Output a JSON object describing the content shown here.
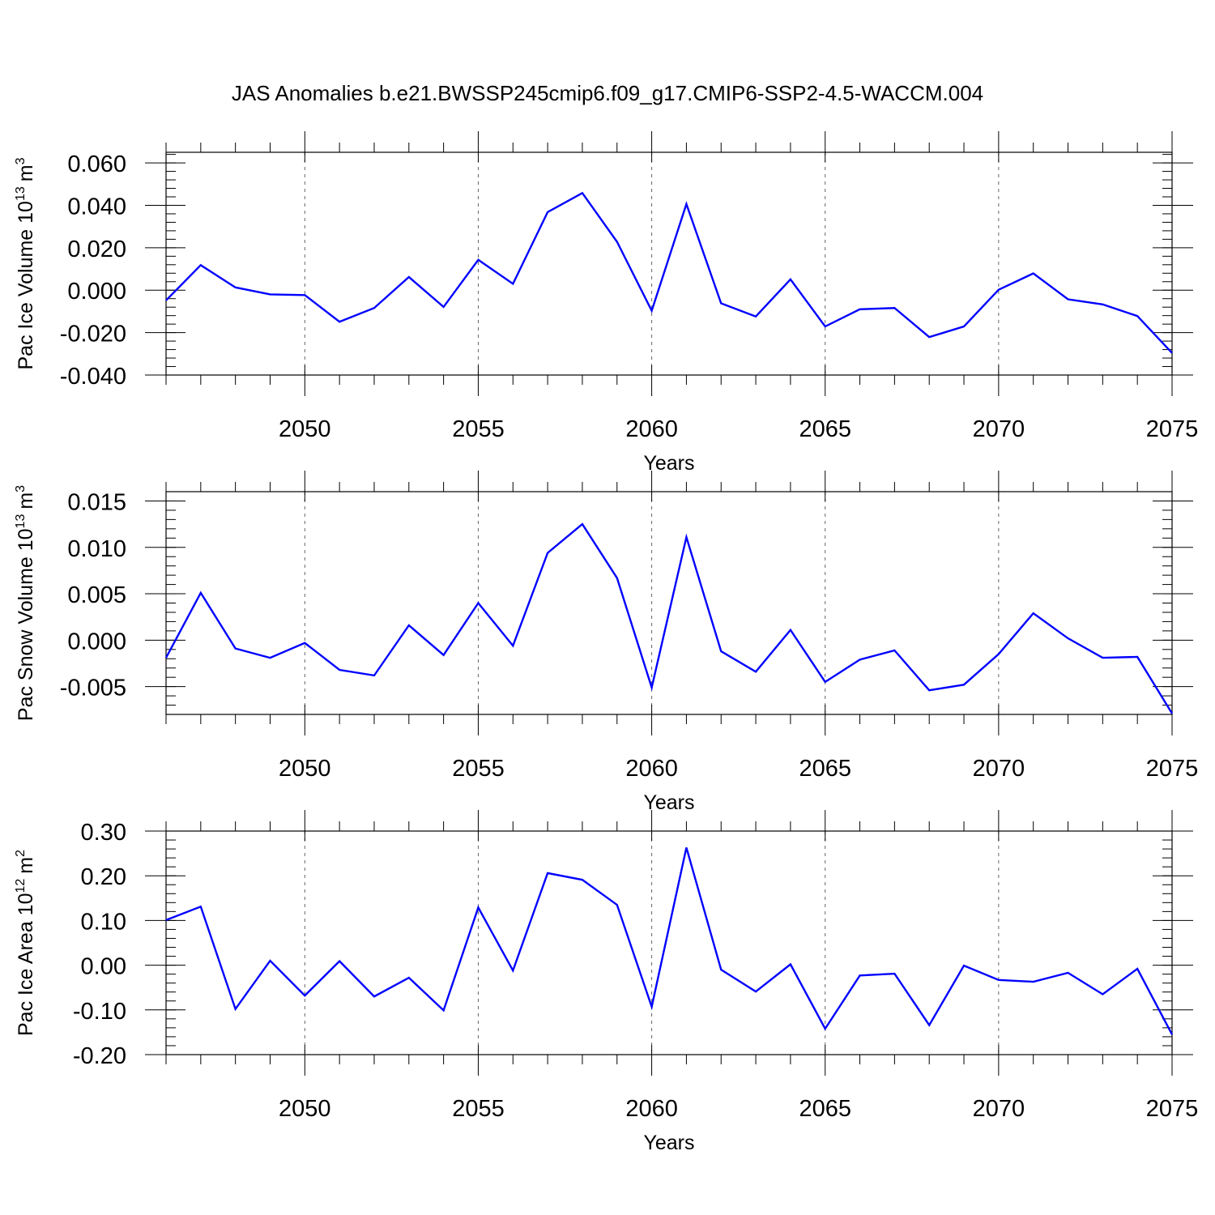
{
  "title": "JAS Anomalies b.e21.BWSSP245cmip6.f09_g17.CMIP6-SSP2-4.5-WACCM.004",
  "chart_data": [
    {
      "type": "line",
      "ylabel_main": "Pac Ice Volume 10",
      "ylabel_exp": "13",
      "ylabel_unit": "m",
      "ylabel_unit_exp": "3",
      "xlabel": "Years",
      "xlim": [
        2046,
        2075
      ],
      "ylim": [
        -0.04,
        0.065
      ],
      "yticks": [
        {
          "value": 0.06,
          "label": "0.060"
        },
        {
          "value": 0.04,
          "label": "0.040"
        },
        {
          "value": 0.02,
          "label": "0.020"
        },
        {
          "value": 0.0,
          "label": "0.000"
        },
        {
          "value": -0.02,
          "label": "-0.020"
        },
        {
          "value": -0.04,
          "label": "-0.040"
        }
      ],
      "yminor_step": 0.004,
      "xticks": [
        "2050",
        "2055",
        "2060",
        "2065",
        "2070",
        "2075"
      ],
      "x": [
        2046,
        2047,
        2048,
        2049,
        2050,
        2051,
        2052,
        2053,
        2054,
        2055,
        2056,
        2057,
        2058,
        2059,
        2060,
        2061,
        2062,
        2063,
        2064,
        2065,
        2066,
        2067,
        2068,
        2069,
        2070,
        2071,
        2072,
        2073,
        2074,
        2075
      ],
      "series": [
        {
          "values": [
            -0.0048,
            0.0118,
            0.0013,
            -0.002,
            -0.0023,
            -0.0149,
            -0.0084,
            0.0062,
            -0.0079,
            0.0143,
            0.003,
            0.0368,
            0.0458,
            0.0228,
            -0.0097,
            0.0406,
            -0.0062,
            -0.0124,
            0.0051,
            -0.0171,
            -0.009,
            -0.0084,
            -0.0221,
            -0.0171,
            0.0002,
            0.0079,
            -0.0043,
            -0.0067,
            -0.0122,
            -0.0296
          ]
        }
      ],
      "color": "#0000ff"
    },
    {
      "type": "line",
      "ylabel_main": "Pac Snow Volume 10",
      "ylabel_exp": "13",
      "ylabel_unit": "m",
      "ylabel_unit_exp": "3",
      "xlabel": "Years",
      "xlim": [
        2046,
        2075
      ],
      "ylim": [
        -0.008,
        0.016
      ],
      "yticks": [
        {
          "value": 0.015,
          "label": "0.015"
        },
        {
          "value": 0.01,
          "label": "0.010"
        },
        {
          "value": 0.005,
          "label": "0.005"
        },
        {
          "value": 0.0,
          "label": "0.000"
        },
        {
          "value": -0.005,
          "label": "-0.005"
        }
      ],
      "yminor_step": 0.001,
      "xticks": [
        "2050",
        "2055",
        "2060",
        "2065",
        "2070",
        "2075"
      ],
      "x": [
        2046,
        2047,
        2048,
        2049,
        2050,
        2051,
        2052,
        2053,
        2054,
        2055,
        2056,
        2057,
        2058,
        2059,
        2060,
        2061,
        2062,
        2063,
        2064,
        2065,
        2066,
        2067,
        2068,
        2069,
        2070,
        2071,
        2072,
        2073,
        2074,
        2075
      ],
      "series": [
        {
          "values": [
            -0.0019,
            0.0051,
            -0.0009,
            -0.0019,
            -0.0003,
            -0.0032,
            -0.0038,
            0.0016,
            -0.0016,
            0.004,
            -0.0006,
            0.0094,
            0.0125,
            0.0067,
            -0.0051,
            0.0111,
            -0.0012,
            -0.0034,
            0.0011,
            -0.0045,
            -0.0021,
            -0.0011,
            -0.0054,
            -0.0048,
            -0.0015,
            0.0029,
            0.0002,
            -0.0019,
            -0.0018,
            -0.0079
          ]
        }
      ],
      "color": "#0000ff"
    },
    {
      "type": "line",
      "ylabel_main": "Pac Ice Area 10",
      "ylabel_exp": "12",
      "ylabel_unit": "m",
      "ylabel_unit_exp": "2",
      "xlabel": "Years",
      "xlim": [
        2046,
        2075
      ],
      "ylim": [
        -0.2,
        0.3
      ],
      "yticks": [
        {
          "value": 0.3,
          "label": "0.30"
        },
        {
          "value": 0.2,
          "label": "0.20"
        },
        {
          "value": 0.1,
          "label": "0.10"
        },
        {
          "value": 0.0,
          "label": "0.00"
        },
        {
          "value": -0.1,
          "label": "-0.10"
        },
        {
          "value": -0.2,
          "label": "-0.20"
        }
      ],
      "yminor_step": 0.02,
      "xticks": [
        "2050",
        "2055",
        "2060",
        "2065",
        "2070",
        "2075"
      ],
      "x": [
        2046,
        2047,
        2048,
        2049,
        2050,
        2051,
        2052,
        2053,
        2054,
        2055,
        2056,
        2057,
        2058,
        2059,
        2060,
        2061,
        2062,
        2063,
        2064,
        2065,
        2066,
        2067,
        2068,
        2069,
        2070,
        2071,
        2072,
        2073,
        2074,
        2075
      ],
      "series": [
        {
          "values": [
            0.101,
            0.131,
            -0.098,
            0.01,
            -0.068,
            0.009,
            -0.07,
            -0.028,
            -0.101,
            0.129,
            -0.012,
            0.206,
            0.191,
            0.135,
            -0.093,
            0.263,
            -0.01,
            -0.059,
            0.002,
            -0.142,
            -0.023,
            -0.019,
            -0.134,
            -0.001,
            -0.033,
            -0.037,
            -0.017,
            -0.065,
            -0.008,
            -0.155
          ]
        }
      ],
      "color": "#0000ff"
    }
  ]
}
